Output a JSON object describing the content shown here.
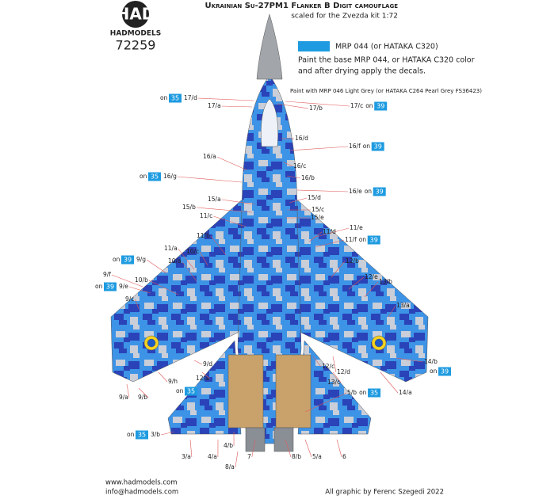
{
  "header": {
    "logo": "HAD",
    "brand": "HADMODELS",
    "code": "72259",
    "title": "Ukrainian Su-27PM1 Flanker B Digit camouflage",
    "subtitle": "scaled for the Zvezda kit 1:72"
  },
  "legend": {
    "paint": "MRP 044 (or HATAKA C320)",
    "instruction_1": "Paint the base MRP 044, or HATAKA C320 color",
    "instruction_2": "and after drying apply the decals."
  },
  "note": "Paint with MRP 046 Light Grey (or HATAKA C264 Pearl Grey FS36423)",
  "callouts": [
    {
      "code": "17/d",
      "on": "on",
      "decal": "35"
    },
    {
      "code": "17/a"
    },
    {
      "code": "17/b"
    },
    {
      "code": "17/c",
      "on": "on",
      "decal": "39"
    },
    {
      "code": "16/d"
    },
    {
      "code": "16/f",
      "on": "on",
      "decal": "39"
    },
    {
      "code": "16/a"
    },
    {
      "code": "16/c"
    },
    {
      "code": "16/b"
    },
    {
      "code": "16/g",
      "on": "on",
      "decal": "35"
    },
    {
      "code": "16/e",
      "on": "on",
      "decal": "39"
    },
    {
      "code": "15/a"
    },
    {
      "code": "15/d"
    },
    {
      "code": "15/b"
    },
    {
      "code": "15/c"
    },
    {
      "code": "11/c"
    },
    {
      "code": "15/e"
    },
    {
      "code": "11/e"
    },
    {
      "code": "11/d"
    },
    {
      "code": "11/b"
    },
    {
      "code": "11/f",
      "on": "on",
      "decal": "39"
    },
    {
      "code": "11/a"
    },
    {
      "code": "10/c"
    },
    {
      "code": "9/g",
      "on": "on",
      "decal": "39"
    },
    {
      "code": "10/a"
    },
    {
      "code": "12/b"
    },
    {
      "code": "9/f"
    },
    {
      "code": "12/e"
    },
    {
      "code": "10/b"
    },
    {
      "code": "9/e",
      "on": "on",
      "decal": "39"
    },
    {
      "code": "13/b"
    },
    {
      "code": "9/c"
    },
    {
      "code": "13/a"
    },
    {
      "code": "14/b"
    },
    {
      "on": "on",
      "decal": "39"
    },
    {
      "code": "9/d"
    },
    {
      "code": "12/c"
    },
    {
      "code": "12/d"
    },
    {
      "code": "12/a"
    },
    {
      "code": "9/h"
    },
    {
      "code": "13/c"
    },
    {
      "on": "on",
      "decal": "35"
    },
    {
      "code": "14/a"
    },
    {
      "code": "9/a"
    },
    {
      "code": "9/b"
    },
    {
      "code": "5/b",
      "on": "on",
      "decal": "35"
    },
    {
      "code": "3/b",
      "on": "on",
      "decal": "35"
    },
    {
      "code": "3/a"
    },
    {
      "code": "4/a"
    },
    {
      "code": "4/b"
    },
    {
      "code": "7"
    },
    {
      "code": "8/a"
    },
    {
      "code": "8/b"
    },
    {
      "code": "5/a"
    },
    {
      "code": "6"
    }
  ],
  "footer": {
    "web": "www.hadmodels.com",
    "email": "info@hadmodels.com",
    "credit": "All graphic by Ferenc Szegedi 2022"
  }
}
